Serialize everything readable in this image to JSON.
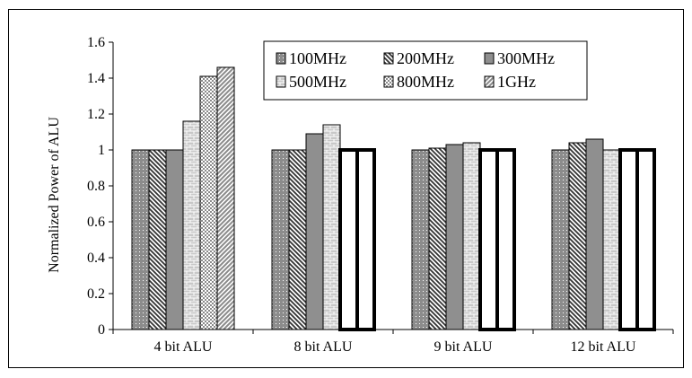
{
  "chart_data": {
    "type": "bar",
    "title": "",
    "xlabel": "",
    "ylabel": "Normalized Power of ALU",
    "ylim": [
      0,
      1.6
    ],
    "yticks": [
      "0",
      "0.2",
      "0.4",
      "0.6",
      "0.8",
      "1",
      "1.2",
      "1.4",
      "1.6"
    ],
    "categories": [
      "4 bit ALU",
      "8 bit ALU",
      "9 bit ALU",
      "12 bit ALU"
    ],
    "legend_position": "top-right",
    "series": [
      {
        "name": "100MHz",
        "pattern": "dots",
        "color": "#8c8c8c",
        "values": [
          1.0,
          1.0,
          1.0,
          1.0
        ]
      },
      {
        "name": "200MHz",
        "pattern": "diagonal-dark",
        "color": "#555555",
        "values": [
          1.0,
          1.0,
          1.01,
          1.04
        ]
      },
      {
        "name": "300MHz",
        "pattern": "solid-gray",
        "color": "#8f8f8f",
        "values": [
          1.0,
          1.09,
          1.03,
          1.06
        ]
      },
      {
        "name": "500MHz",
        "pattern": "brick",
        "color": "#bdbdbd",
        "values": [
          1.16,
          1.14,
          1.04,
          1.0
        ]
      },
      {
        "name": "800MHz",
        "pattern": "checker",
        "color": "#9a9a9a",
        "values": [
          1.41,
          1.0,
          1.0,
          1.0
        ]
      },
      {
        "name": "1GHz",
        "pattern": "diagonal-light",
        "color": "#a8a8a8",
        "values": [
          1.46,
          1.0,
          1.0,
          1.0
        ]
      }
    ]
  }
}
